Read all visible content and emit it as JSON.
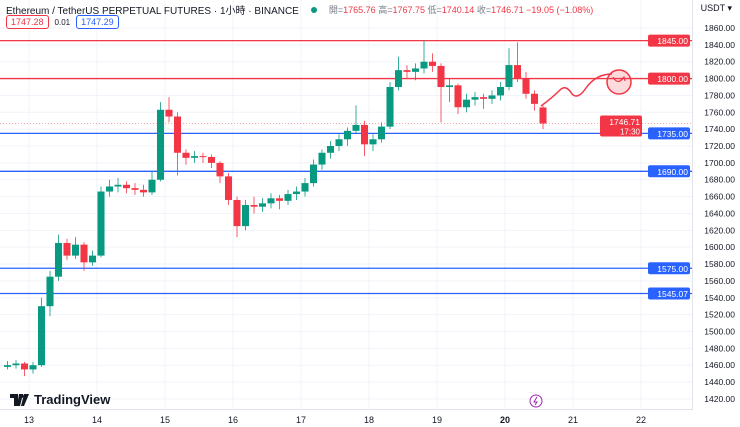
{
  "header": {
    "symbol": "Ethereum / TetherUS PERPETUAL FUTURES · 1小時 · BINANCE",
    "status_color": "#089981",
    "open_label": "開=",
    "open": "1765.76",
    "high_label": "高=",
    "high": "1767.75",
    "low_label": "低=",
    "low": "1740.14",
    "close_label": "收=",
    "close": "1746.71",
    "change": "−19.05 (−1.08%)",
    "sell_price": "1747.28",
    "spread": "0.01",
    "buy_price": "1747.29",
    "currency": "USDT ▾"
  },
  "branding": {
    "logo_text": "TradingView"
  },
  "colors": {
    "up": "#089981",
    "down": "#f23645",
    "support": "#2962ff",
    "resistance": "#f23645"
  },
  "chart_data": {
    "type": "candlestick",
    "interval": "1小時",
    "ylim": [
      1410,
      1870
    ],
    "y_ticks": [
      1860,
      1840,
      1820,
      1800,
      1780,
      1760,
      1740,
      1720,
      1700,
      1680,
      1660,
      1640,
      1620,
      1600,
      1580,
      1560,
      1540,
      1520,
      1500,
      1480,
      1460,
      1440,
      1420
    ],
    "x_ticks": [
      "13",
      "14",
      "15",
      "16",
      "17",
      "18",
      "19",
      "20",
      "21",
      "22"
    ],
    "grid": true,
    "candles": [
      {
        "t": "12 15:00",
        "o": 1458,
        "h": 1465,
        "l": 1455,
        "c": 1460
      },
      {
        "t": "12 18:00",
        "o": 1460,
        "h": 1466,
        "l": 1456,
        "c": 1462
      },
      {
        "t": "12 21:00",
        "o": 1462,
        "h": 1464,
        "l": 1447,
        "c": 1455
      },
      {
        "t": "13 00:00",
        "o": 1455,
        "h": 1464,
        "l": 1450,
        "c": 1460
      },
      {
        "t": "13 03:00",
        "o": 1460,
        "h": 1540,
        "l": 1458,
        "c": 1530
      },
      {
        "t": "13 06:00",
        "o": 1530,
        "h": 1572,
        "l": 1518,
        "c": 1565
      },
      {
        "t": "13 09:00",
        "o": 1565,
        "h": 1615,
        "l": 1560,
        "c": 1605
      },
      {
        "t": "13 12:00",
        "o": 1605,
        "h": 1610,
        "l": 1585,
        "c": 1590
      },
      {
        "t": "13 15:00",
        "o": 1590,
        "h": 1612,
        "l": 1586,
        "c": 1603
      },
      {
        "t": "13 18:00",
        "o": 1603,
        "h": 1606,
        "l": 1572,
        "c": 1582
      },
      {
        "t": "13 21:00",
        "o": 1582,
        "h": 1596,
        "l": 1578,
        "c": 1590
      },
      {
        "t": "14 00:00",
        "o": 1590,
        "h": 1672,
        "l": 1588,
        "c": 1666
      },
      {
        "t": "14 03:00",
        "o": 1666,
        "h": 1680,
        "l": 1660,
        "c": 1672
      },
      {
        "t": "14 06:00",
        "o": 1672,
        "h": 1682,
        "l": 1665,
        "c": 1674
      },
      {
        "t": "14 09:00",
        "o": 1674,
        "h": 1678,
        "l": 1664,
        "c": 1670
      },
      {
        "t": "14 12:00",
        "o": 1670,
        "h": 1676,
        "l": 1662,
        "c": 1668
      },
      {
        "t": "14 15:00",
        "o": 1668,
        "h": 1674,
        "l": 1660,
        "c": 1665
      },
      {
        "t": "14 18:00",
        "o": 1665,
        "h": 1690,
        "l": 1662,
        "c": 1680
      },
      {
        "t": "14 21:00",
        "o": 1680,
        "h": 1772,
        "l": 1678,
        "c": 1763
      },
      {
        "t": "15 00:00",
        "o": 1763,
        "h": 1778,
        "l": 1748,
        "c": 1755
      },
      {
        "t": "15 03:00",
        "o": 1755,
        "h": 1760,
        "l": 1685,
        "c": 1712
      },
      {
        "t": "15 06:00",
        "o": 1712,
        "h": 1716,
        "l": 1698,
        "c": 1706
      },
      {
        "t": "15 09:00",
        "o": 1706,
        "h": 1714,
        "l": 1700,
        "c": 1708
      },
      {
        "t": "15 12:00",
        "o": 1708,
        "h": 1712,
        "l": 1700,
        "c": 1707
      },
      {
        "t": "15 15:00",
        "o": 1707,
        "h": 1710,
        "l": 1694,
        "c": 1700
      },
      {
        "t": "15 18:00",
        "o": 1700,
        "h": 1702,
        "l": 1676,
        "c": 1684
      },
      {
        "t": "15 21:00",
        "o": 1684,
        "h": 1688,
        "l": 1650,
        "c": 1656
      },
      {
        "t": "16 00:00",
        "o": 1656,
        "h": 1660,
        "l": 1612,
        "c": 1625
      },
      {
        "t": "16 03:00",
        "o": 1625,
        "h": 1656,
        "l": 1620,
        "c": 1650
      },
      {
        "t": "16 06:00",
        "o": 1650,
        "h": 1660,
        "l": 1640,
        "c": 1648
      },
      {
        "t": "16 09:00",
        "o": 1648,
        "h": 1658,
        "l": 1642,
        "c": 1652
      },
      {
        "t": "16 12:00",
        "o": 1652,
        "h": 1664,
        "l": 1646,
        "c": 1658
      },
      {
        "t": "16 15:00",
        "o": 1658,
        "h": 1662,
        "l": 1645,
        "c": 1655
      },
      {
        "t": "16 18:00",
        "o": 1655,
        "h": 1668,
        "l": 1650,
        "c": 1663
      },
      {
        "t": "16 21:00",
        "o": 1663,
        "h": 1672,
        "l": 1656,
        "c": 1666
      },
      {
        "t": "17 00:00",
        "o": 1666,
        "h": 1682,
        "l": 1660,
        "c": 1676
      },
      {
        "t": "17 03:00",
        "o": 1676,
        "h": 1704,
        "l": 1672,
        "c": 1698
      },
      {
        "t": "17 06:00",
        "o": 1698,
        "h": 1716,
        "l": 1692,
        "c": 1712
      },
      {
        "t": "17 09:00",
        "o": 1712,
        "h": 1726,
        "l": 1705,
        "c": 1720
      },
      {
        "t": "17 12:00",
        "o": 1720,
        "h": 1734,
        "l": 1714,
        "c": 1728
      },
      {
        "t": "17 15:00",
        "o": 1728,
        "h": 1742,
        "l": 1720,
        "c": 1738
      },
      {
        "t": "17 18:00",
        "o": 1738,
        "h": 1768,
        "l": 1734,
        "c": 1745
      },
      {
        "t": "17 21:00",
        "o": 1745,
        "h": 1750,
        "l": 1708,
        "c": 1722
      },
      {
        "t": "18 00:00",
        "o": 1722,
        "h": 1734,
        "l": 1714,
        "c": 1728
      },
      {
        "t": "18 03:00",
        "o": 1728,
        "h": 1748,
        "l": 1724,
        "c": 1743
      },
      {
        "t": "18 06:00",
        "o": 1743,
        "h": 1796,
        "l": 1740,
        "c": 1790
      },
      {
        "t": "18 09:00",
        "o": 1790,
        "h": 1826,
        "l": 1786,
        "c": 1810
      },
      {
        "t": "18 12:00",
        "o": 1810,
        "h": 1816,
        "l": 1800,
        "c": 1808
      },
      {
        "t": "18 15:00",
        "o": 1808,
        "h": 1818,
        "l": 1798,
        "c": 1812
      },
      {
        "t": "18 18:00",
        "o": 1812,
        "h": 1845,
        "l": 1806,
        "c": 1820
      },
      {
        "t": "18 21:00",
        "o": 1820,
        "h": 1830,
        "l": 1808,
        "c": 1815
      },
      {
        "t": "19 00:00",
        "o": 1815,
        "h": 1818,
        "l": 1748,
        "c": 1790
      },
      {
        "t": "19 03:00",
        "o": 1790,
        "h": 1800,
        "l": 1772,
        "c": 1792
      },
      {
        "t": "19 06:00",
        "o": 1792,
        "h": 1794,
        "l": 1758,
        "c": 1766
      },
      {
        "t": "19 09:00",
        "o": 1766,
        "h": 1782,
        "l": 1760,
        "c": 1775
      },
      {
        "t": "19 12:00",
        "o": 1775,
        "h": 1784,
        "l": 1768,
        "c": 1778
      },
      {
        "t": "19 15:00",
        "o": 1778,
        "h": 1782,
        "l": 1764,
        "c": 1776
      },
      {
        "t": "19 18:00",
        "o": 1776,
        "h": 1786,
        "l": 1770,
        "c": 1780
      },
      {
        "t": "19 21:00",
        "o": 1780,
        "h": 1796,
        "l": 1774,
        "c": 1790
      },
      {
        "t": "20 00:00",
        "o": 1790,
        "h": 1836,
        "l": 1786,
        "c": 1816
      },
      {
        "t": "20 03:00",
        "o": 1816,
        "h": 1843,
        "l": 1796,
        "c": 1800
      },
      {
        "t": "20 06:00",
        "o": 1800,
        "h": 1808,
        "l": 1776,
        "c": 1782
      },
      {
        "t": "20 09:00",
        "o": 1782,
        "h": 1786,
        "l": 1762,
        "c": 1770
      },
      {
        "t": "20 12:00",
        "o": 1765.76,
        "h": 1767.75,
        "l": 1740.14,
        "c": 1746.71
      }
    ],
    "horizontal_lines": [
      {
        "price": 1845.0,
        "label": "1845.00",
        "kind": "resistance"
      },
      {
        "price": 1800.0,
        "label": "1800.00",
        "kind": "resistance"
      },
      {
        "price": 1735.0,
        "label": "1735.00",
        "kind": "support"
      },
      {
        "price": 1690.0,
        "label": "1690.00",
        "kind": "support"
      },
      {
        "price": 1575.0,
        "label": "1575.00",
        "kind": "support"
      },
      {
        "price": 1545.07,
        "label": "1545.07",
        "kind": "support"
      }
    ],
    "last_price": {
      "price": 1746.71,
      "label": "1746.71",
      "countdown": "17:30"
    }
  }
}
